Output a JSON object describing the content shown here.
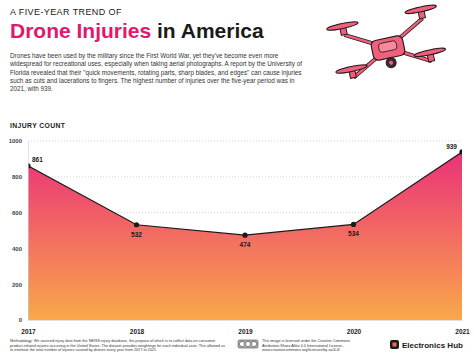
{
  "chart_data": {
    "type": "area",
    "subtitle": "A FIVE-YEAR TREND OF",
    "title": "Drone Injuries in America",
    "description": "Drones have been used by the military since the First World War, yet they've become even more widespread for recreational uses, especially when taking aerial photographs. A report by the University of Florida revealed that their \"quick movements, rotating parts, sharp blades, and edges\" can cause injuries such as cuts and lacerations to fingers. The highest number of injuries over the five-year period was in 2021, with 939.",
    "y_label": "INJURY COUNT",
    "categories": [
      "2017",
      "2018",
      "2019",
      "2020",
      "2021"
    ],
    "values": [
      861,
      532,
      474,
      534,
      939
    ],
    "color": "#1a1a1a",
    "marker": "circle",
    "ylim": [
      0,
      1000
    ],
    "yticks": [
      0,
      200,
      400,
      600,
      800,
      1000
    ],
    "grid": true,
    "data_labels": true,
    "footnote": "Methodology: We sourced injury data from the NEISS injury database, the purpose of which is to collect data on consumer product-related injuries occurring in the United States. The dataset provides weightings for each individual case. This allowed us to estimate the total number of injuries caused by drones every year from 2017 to 2021.",
    "license": "This image is licensed under the Creative Commons Attribution-Share Alike 4.0 International License - www.creativecommons.org/licenses/by-sa/4.0/",
    "brand": "Electronics Hub"
  }
}
